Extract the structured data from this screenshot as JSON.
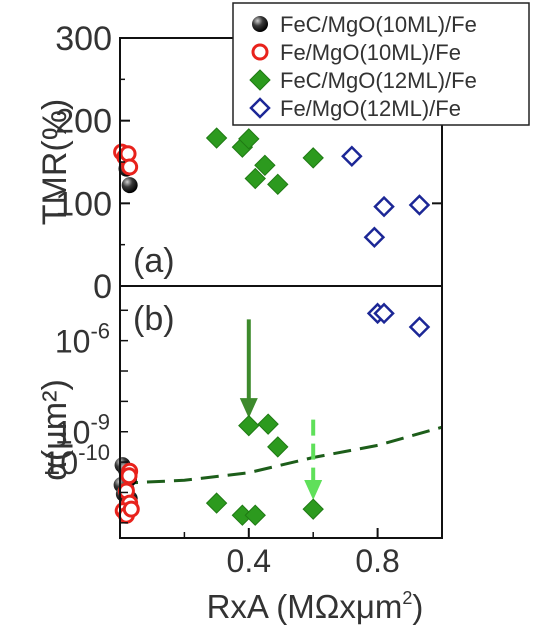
{
  "chart_data": [
    {
      "panel_label": "(a)",
      "type": "scatter",
      "ylabel": "TMR(%)",
      "ylim": [
        0,
        300
      ],
      "yticks": [
        {
          "v": 0,
          "label": "0"
        },
        {
          "v": 100,
          "label": "100"
        },
        {
          "v": 200,
          "label": "200"
        },
        {
          "v": 300,
          "label": "300"
        }
      ],
      "xlim": [
        0,
        1.0
      ],
      "series": [
        {
          "name": "FeC/MgO(10ML)/Fe",
          "marker": "ball",
          "color": "#111111",
          "points": [
            [
              0.01,
              160
            ],
            [
              0.02,
              142
            ],
            [
              0.03,
              122
            ]
          ]
        },
        {
          "name": "Fe/MgO(10ML)/Fe",
          "marker": "circle-open",
          "color": "#e8221c",
          "points": [
            [
              0.005,
              162
            ],
            [
              0.015,
              156
            ],
            [
              0.025,
              160
            ],
            [
              0.03,
              144
            ]
          ]
        },
        {
          "name": "FeC/MgO(12ML)/Fe",
          "marker": "diamond-filled",
          "color": "#2c9a1e",
          "points": [
            [
              0.3,
              179
            ],
            [
              0.38,
              168
            ],
            [
              0.4,
              178
            ],
            [
              0.42,
              130
            ],
            [
              0.45,
              146
            ],
            [
              0.49,
              123
            ],
            [
              0.6,
              155
            ]
          ]
        },
        {
          "name": "Fe/MgO(12ML)/Fe",
          "marker": "diamond-open",
          "color": "#1c2796",
          "points": [
            [
              0.72,
              157
            ],
            [
              0.79,
              59
            ],
            [
              0.82,
              96
            ],
            [
              0.93,
              98
            ]
          ]
        }
      ]
    },
    {
      "panel_label": "(b)",
      "type": "scatter",
      "ylabel": "α(μm²)",
      "yscale": "log",
      "ylim_log10": [
        -12.5,
        -4.2
      ],
      "yticks": [
        {
          "v": -6,
          "base": "10",
          "exp": "-6"
        },
        {
          "v": -9,
          "base": "10",
          "exp": "-9"
        },
        {
          "v": -10,
          "base": "10",
          "exp": "-10"
        }
      ],
      "xlabel_main": "RxA (MΩxμm",
      "xlabel_sup": "2",
      "xlabel_end": ")",
      "xlim": [
        0,
        1.0
      ],
      "xticks": [
        {
          "v": 0.4,
          "label": "0.4"
        },
        {
          "v": 0.8,
          "label": "0.8"
        }
      ],
      "series": [
        {
          "name": "FeC/MgO(10ML)/Fe",
          "marker": "ball",
          "color": "#111111",
          "points": [
            [
              0.008,
              -10.1
            ],
            [
              0.018,
              -10.25
            ],
            [
              0.028,
              -10.55
            ],
            [
              0.005,
              -10.75
            ],
            [
              0.02,
              -10.9
            ],
            [
              0.012,
              -11.05
            ],
            [
              0.03,
              -11.2
            ],
            [
              0.025,
              -10.4
            ]
          ]
        },
        {
          "name": "Fe/MgO(10ML)/Fe",
          "marker": "circle-open",
          "color": "#e8221c",
          "points": [
            [
              0.03,
              -10.3
            ],
            [
              0.028,
              -10.45
            ],
            [
              0.02,
              -10.95
            ],
            [
              0.03,
              -11.35
            ],
            [
              0.01,
              -11.6
            ],
            [
              0.02,
              -11.75
            ],
            [
              0.035,
              -11.55
            ]
          ]
        },
        {
          "name": "FeC/MgO(12ML)/Fe",
          "marker": "diamond-filled",
          "color": "#2c9a1e",
          "points": [
            [
              0.3,
              -11.35
            ],
            [
              0.38,
              -11.75
            ],
            [
              0.42,
              -11.75
            ],
            [
              0.6,
              -11.55
            ],
            [
              0.4,
              -8.8
            ],
            [
              0.46,
              -8.75
            ],
            [
              0.49,
              -9.5
            ]
          ]
        },
        {
          "name": "Fe/MgO(12ML)/Fe",
          "marker": "diamond-open",
          "color": "#1c2796",
          "points": [
            [
              0.8,
              -5.1
            ],
            [
              0.82,
              -5.1
            ],
            [
              0.93,
              -5.55
            ]
          ]
        }
      ],
      "fit_curve": {
        "color": "#1d5e1a",
        "points": [
          [
            0.0,
            -10.7
          ],
          [
            0.2,
            -10.6
          ],
          [
            0.4,
            -10.35
          ],
          [
            0.6,
            -9.85
          ],
          [
            0.8,
            -9.45
          ],
          [
            1.0,
            -8.85
          ]
        ]
      },
      "arrows": [
        {
          "color": "#3d8a2c",
          "style": "solid",
          "x": 0.4,
          "from": -5.3,
          "to": -8.55
        },
        {
          "color": "#5fe05a",
          "style": "dashed",
          "x": 0.6,
          "from": -8.6,
          "to": -11.25
        }
      ]
    }
  ],
  "legend": {
    "placement": "top-right",
    "items": [
      {
        "label": "FeC/MgO(10ML)/Fe",
        "marker": "ball",
        "color": "#111111"
      },
      {
        "label": "Fe/MgO(10ML)/Fe",
        "marker": "circle-open",
        "color": "#e8221c"
      },
      {
        "label": "FeC/MgO(12ML)/Fe",
        "marker": "diamond-filled",
        "color": "#2c9a1e"
      },
      {
        "label": "Fe/MgO(12ML)/Fe",
        "marker": "diamond-open",
        "color": "#1c2796"
      }
    ]
  }
}
